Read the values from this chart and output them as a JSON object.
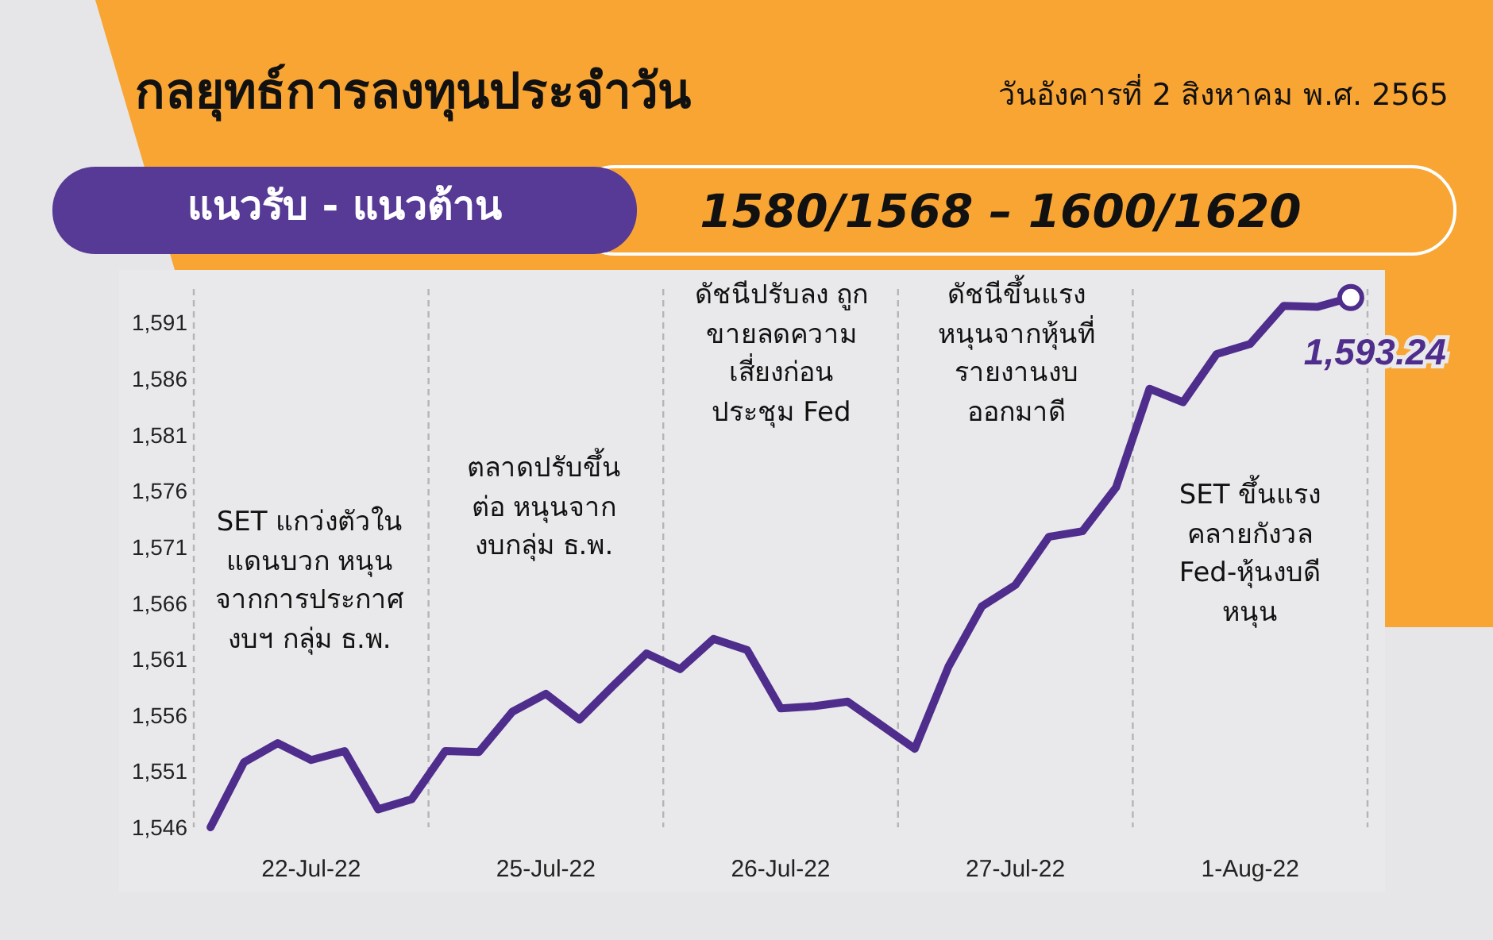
{
  "chart_data": {
    "type": "line",
    "title": "กลยุทธ์การลงทุนประจำวัน",
    "subtitle": "วันอังคารที่ 2 สิงหาคม พ.ศ. 2565",
    "categories": [
      null,
      null,
      null,
      "22-Jul-22",
      null,
      null,
      null,
      null,
      null,
      null,
      "25-Jul-22",
      null,
      null,
      null,
      null,
      null,
      null,
      "26-Jul-22",
      null,
      null,
      null,
      null,
      null,
      null,
      "27-Jul-22",
      null,
      null,
      null,
      null,
      null,
      null,
      "1-Aug-22",
      null,
      null,
      null
    ],
    "series": [
      {
        "color": "#4f2d8c",
        "values": [
          1546,
          1551.8,
          1553.5,
          1552.0,
          1552.8,
          1547.6,
          1548.5,
          1552.8,
          1552.7,
          1556.3,
          1557.9,
          1555.6,
          1558.6,
          1561.5,
          1560.1,
          1562.8,
          1561.8,
          1556.6,
          1556.8,
          1557.2,
          1555.1,
          1553.0,
          1560.3,
          1565.7,
          1567.6,
          1571.9,
          1572.4,
          1576.3,
          1585.1,
          1583.9,
          1588.2,
          1589.1,
          1592.5,
          1592.4,
          1593.24
        ],
        "value_labels": [
          null,
          null,
          null,
          null,
          null,
          null,
          null,
          null,
          null,
          null,
          null,
          null,
          null,
          null,
          null,
          null,
          null,
          null,
          null,
          null,
          null,
          null,
          null,
          null,
          null,
          null,
          null,
          null,
          null,
          null,
          null,
          null,
          null,
          null,
          "1,593.24"
        ]
      }
    ],
    "ylim": [
      1546,
      1594
    ],
    "yticks": [
      {
        "value": 1546,
        "label": "1,546"
      },
      {
        "value": 1551,
        "label": "1,551"
      },
      {
        "value": 1556,
        "label": "1,556"
      },
      {
        "value": 1561,
        "label": "1,561"
      },
      {
        "value": 1566,
        "label": "1,566"
      },
      {
        "value": 1571,
        "label": "1,571"
      },
      {
        "value": 1576,
        "label": "1,576"
      },
      {
        "value": 1581,
        "label": "1,581"
      },
      {
        "value": 1586,
        "label": "1,586"
      },
      {
        "value": 1591,
        "label": "1,591"
      }
    ],
    "grid": "x",
    "annotations": [
      "SET แกว่งตัวใน\nแดนบวก หนุน\nจากการประกาศ\nงบฯ กลุ่ม ธ.พ.",
      "ตลาดปรับขึ้น\nต่อ หนุนจาก\nงบกลุ่ม ธ.พ.",
      "ดัชนีปรับลง ถูก\nขายลดความ\nเสี่ยงก่อน\nประชุม Fed",
      "ดัชนีขึ้นแรง\nหนุนจากหุ้นที่\nรายงานงบ\nออกมาดี",
      "SET ขึ้นแรง\nคลายกังวล\nFed-หุ้นงบดี\nหนุน",
      "แนวรับ - แนวต้าน",
      "1580/1568  –  1600/1620"
    ]
  }
}
